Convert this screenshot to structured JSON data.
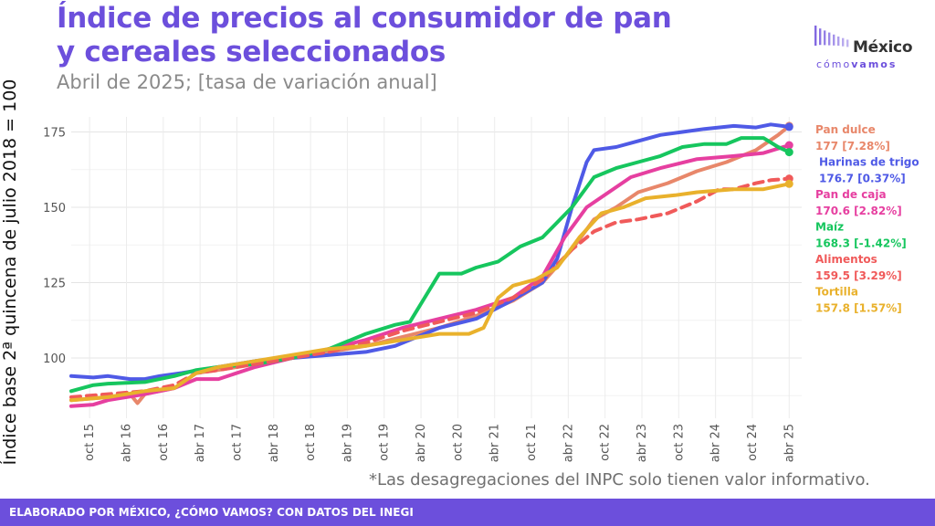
{
  "header": {
    "title": "Índice de precios al consumidor de pan y cereales seleccionados",
    "subtitle": "Abril de 2025; [tasa de variación anual]"
  },
  "logo": {
    "word": "México",
    "sub_light": "cómo",
    "sub_bold": "vamos",
    "icon": "bar-waveform-icon",
    "color": "#6c4fdc"
  },
  "note": "*Las desagregaciones del INPC solo tienen valor informativo.",
  "footer": "ELABORADO POR MÉXICO, ¿CÓMO VAMOS? CON DATOS DEL INEGI",
  "chart_data": {
    "type": "line",
    "title": "Índice de precios al consumidor de pan y cereales seleccionados",
    "subtitle": "Abril de 2025; [tasa de variación anual]",
    "ylabel": "Índice base 2ª quincena de julio 2018 = 100",
    "xlabel": "",
    "ylim": [
      80,
      180
    ],
    "yticks": [
      100,
      125,
      150,
      175
    ],
    "xlim": [
      2015.5,
      2025.42
    ],
    "xticks": [
      {
        "x": 2015.75,
        "label": "oct 15"
      },
      {
        "x": 2016.25,
        "label": "abr 16"
      },
      {
        "x": 2016.75,
        "label": "oct 16"
      },
      {
        "x": 2017.25,
        "label": "abr 17"
      },
      {
        "x": 2017.75,
        "label": "oct 17"
      },
      {
        "x": 2018.25,
        "label": "abr 18"
      },
      {
        "x": 2018.75,
        "label": "oct 18"
      },
      {
        "x": 2019.25,
        "label": "abr 19"
      },
      {
        "x": 2019.75,
        "label": "oct 19"
      },
      {
        "x": 2020.25,
        "label": "abr 20"
      },
      {
        "x": 2020.75,
        "label": "oct 20"
      },
      {
        "x": 2021.25,
        "label": "abr 21"
      },
      {
        "x": 2021.75,
        "label": "oct 21"
      },
      {
        "x": 2022.25,
        "label": "abr 22"
      },
      {
        "x": 2022.75,
        "label": "oct 22"
      },
      {
        "x": 2023.25,
        "label": "abr 23"
      },
      {
        "x": 2023.75,
        "label": "oct 23"
      },
      {
        "x": 2024.25,
        "label": "abr 24"
      },
      {
        "x": 2024.75,
        "label": "oct 24"
      },
      {
        "x": 2025.25,
        "label": "abr 25"
      }
    ],
    "grid": true,
    "legend": "right",
    "series": [
      {
        "name": "Pan dulce",
        "value_label": "177 [7.28%]",
        "color": "#e8876a",
        "dash": false,
        "points": [
          [
            2015.5,
            86
          ],
          [
            2016.0,
            87
          ],
          [
            2016.3,
            88
          ],
          [
            2016.4,
            85
          ],
          [
            2016.5,
            88
          ],
          [
            2016.9,
            90
          ],
          [
            2017.2,
            95
          ],
          [
            2017.5,
            96
          ],
          [
            2018.0,
            98
          ],
          [
            2018.5,
            100
          ],
          [
            2019.0,
            102
          ],
          [
            2019.5,
            104
          ],
          [
            2020.0,
            107
          ],
          [
            2020.5,
            110
          ],
          [
            2021.0,
            114
          ],
          [
            2021.5,
            119
          ],
          [
            2021.9,
            125
          ],
          [
            2022.3,
            136
          ],
          [
            2022.6,
            146
          ],
          [
            2022.9,
            150
          ],
          [
            2023.2,
            155
          ],
          [
            2023.6,
            158
          ],
          [
            2024.0,
            162
          ],
          [
            2024.4,
            165
          ],
          [
            2024.8,
            169
          ],
          [
            2025.1,
            174
          ],
          [
            2025.25,
            177
          ]
        ]
      },
      {
        "name": "Harinas de trigo",
        "value_label": "176.7 [0.37%]",
        "color": "#4f5ae6",
        "dash": false,
        "points": [
          [
            2015.5,
            94
          ],
          [
            2015.8,
            93.5
          ],
          [
            2016.0,
            94
          ],
          [
            2016.3,
            93
          ],
          [
            2016.5,
            93
          ],
          [
            2016.7,
            94
          ],
          [
            2017.0,
            95
          ],
          [
            2017.5,
            97
          ],
          [
            2018.0,
            99
          ],
          [
            2018.5,
            100
          ],
          [
            2019.0,
            101
          ],
          [
            2019.5,
            102
          ],
          [
            2019.9,
            104
          ],
          [
            2020.1,
            106
          ],
          [
            2020.5,
            110
          ],
          [
            2021.0,
            113
          ],
          [
            2021.4,
            118
          ],
          [
            2021.9,
            125
          ],
          [
            2022.1,
            133
          ],
          [
            2022.3,
            150
          ],
          [
            2022.5,
            165
          ],
          [
            2022.6,
            169
          ],
          [
            2022.9,
            170
          ],
          [
            2023.2,
            172
          ],
          [
            2023.5,
            174
          ],
          [
            2023.8,
            175
          ],
          [
            2024.1,
            176
          ],
          [
            2024.5,
            177
          ],
          [
            2024.8,
            176.5
          ],
          [
            2025.0,
            177.5
          ],
          [
            2025.25,
            176.7
          ]
        ]
      },
      {
        "name": "Pan de caja",
        "value_label": "170.6 [2.82%]",
        "color": "#e63fa0",
        "dash": false,
        "points": [
          [
            2015.5,
            84
          ],
          [
            2015.8,
            84.5
          ],
          [
            2016.0,
            86
          ],
          [
            2016.5,
            88
          ],
          [
            2016.9,
            90
          ],
          [
            2017.2,
            93
          ],
          [
            2017.5,
            93
          ],
          [
            2018.0,
            97
          ],
          [
            2018.5,
            100
          ],
          [
            2019.0,
            103
          ],
          [
            2019.5,
            106
          ],
          [
            2020.0,
            110
          ],
          [
            2020.5,
            113
          ],
          [
            2021.0,
            116
          ],
          [
            2021.5,
            120
          ],
          [
            2021.9,
            127
          ],
          [
            2022.2,
            140
          ],
          [
            2022.5,
            150
          ],
          [
            2022.8,
            155
          ],
          [
            2023.1,
            160
          ],
          [
            2023.5,
            163
          ],
          [
            2024.0,
            166
          ],
          [
            2024.5,
            167
          ],
          [
            2024.9,
            168
          ],
          [
            2025.25,
            170.6
          ]
        ]
      },
      {
        "name": "Maíz",
        "value_label": "168.3 [-1.42%]",
        "color": "#16c65e",
        "dash": false,
        "points": [
          [
            2015.5,
            89
          ],
          [
            2015.8,
            91
          ],
          [
            2016.0,
            91.5
          ],
          [
            2016.5,
            92
          ],
          [
            2016.9,
            94
          ],
          [
            2017.2,
            96
          ],
          [
            2017.5,
            97
          ],
          [
            2018.0,
            98
          ],
          [
            2018.5,
            100
          ],
          [
            2019.0,
            103
          ],
          [
            2019.5,
            108
          ],
          [
            2019.9,
            111
          ],
          [
            2020.1,
            112
          ],
          [
            2020.3,
            120
          ],
          [
            2020.5,
            128
          ],
          [
            2020.8,
            128
          ],
          [
            2021.0,
            130
          ],
          [
            2021.3,
            132
          ],
          [
            2021.6,
            137
          ],
          [
            2021.9,
            140
          ],
          [
            2022.1,
            145
          ],
          [
            2022.3,
            150
          ],
          [
            2022.6,
            160
          ],
          [
            2022.9,
            163
          ],
          [
            2023.2,
            165
          ],
          [
            2023.5,
            167
          ],
          [
            2023.8,
            170
          ],
          [
            2024.1,
            171
          ],
          [
            2024.4,
            171
          ],
          [
            2024.6,
            173
          ],
          [
            2024.9,
            173
          ],
          [
            2025.1,
            170
          ],
          [
            2025.25,
            168.3
          ]
        ]
      },
      {
        "name": "Alimentos",
        "value_label": "159.5 [3.29%]",
        "color": "#f05a5a",
        "dash": true,
        "points": [
          [
            2015.5,
            87
          ],
          [
            2016.0,
            88
          ],
          [
            2016.5,
            89
          ],
          [
            2016.9,
            91
          ],
          [
            2017.2,
            95
          ],
          [
            2017.5,
            96
          ],
          [
            2018.0,
            98
          ],
          [
            2018.5,
            100
          ],
          [
            2019.0,
            102
          ],
          [
            2019.5,
            105
          ],
          [
            2020.0,
            109
          ],
          [
            2020.5,
            112
          ],
          [
            2021.0,
            115
          ],
          [
            2021.5,
            120
          ],
          [
            2021.9,
            126
          ],
          [
            2022.3,
            136
          ],
          [
            2022.6,
            142
          ],
          [
            2022.9,
            145
          ],
          [
            2023.2,
            146
          ],
          [
            2023.6,
            148
          ],
          [
            2024.0,
            152
          ],
          [
            2024.3,
            156
          ],
          [
            2024.5,
            156
          ],
          [
            2024.8,
            158
          ],
          [
            2025.0,
            159
          ],
          [
            2025.25,
            159.5
          ]
        ]
      },
      {
        "name": "Tortilla",
        "value_label": "157.8 [1.57%]",
        "color": "#e9b12c",
        "dash": false,
        "points": [
          [
            2015.5,
            86
          ],
          [
            2016.0,
            87
          ],
          [
            2016.5,
            89
          ],
          [
            2016.9,
            90
          ],
          [
            2017.2,
            95
          ],
          [
            2017.5,
            97
          ],
          [
            2018.0,
            99
          ],
          [
            2018.5,
            101
          ],
          [
            2019.0,
            103
          ],
          [
            2019.5,
            104
          ],
          [
            2020.0,
            106
          ],
          [
            2020.5,
            108
          ],
          [
            2020.9,
            108
          ],
          [
            2021.1,
            110
          ],
          [
            2021.3,
            120
          ],
          [
            2021.5,
            124
          ],
          [
            2021.8,
            126
          ],
          [
            2022.1,
            130
          ],
          [
            2022.4,
            140
          ],
          [
            2022.7,
            148
          ],
          [
            2023.0,
            150
          ],
          [
            2023.3,
            153
          ],
          [
            2023.7,
            154
          ],
          [
            2024.0,
            155
          ],
          [
            2024.5,
            156
          ],
          [
            2024.9,
            156
          ],
          [
            2025.25,
            157.8
          ]
        ]
      }
    ]
  }
}
